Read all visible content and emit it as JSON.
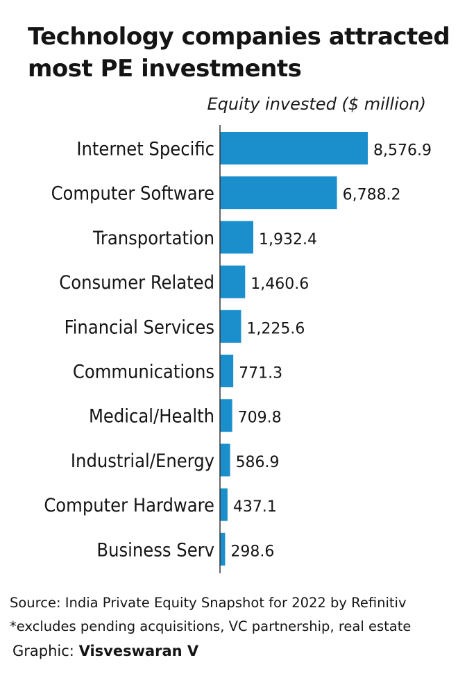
{
  "title": "Technology companies attracted most PE investments",
  "subtitle": "Equity invested ($ million)",
  "source": "Source: India Private Equity Snapshot for 2022 by Refinitiv",
  "footnote": "*excludes pending acquisitions, VC partnership, real estate",
  "credit": {
    "label": "Graphic:",
    "author": "Visveswaran V"
  },
  "colors": {
    "bar": "#1b8fcc",
    "axis": "#333333"
  },
  "chart_data": {
    "type": "bar",
    "orientation": "horizontal",
    "categories": [
      "Internet Specific",
      "Computer Software",
      "Transportation",
      "Consumer Related",
      "Financial Services",
      "Communications",
      "Medical/Health",
      "Industrial/Energy",
      "Computer Hardware",
      "Business Serv"
    ],
    "values": [
      8576.9,
      6788.2,
      1932.4,
      1460.6,
      1225.6,
      771.3,
      709.8,
      586.9,
      437.1,
      298.6
    ],
    "value_labels": [
      "8,576.9",
      "6,788.2",
      "1,932.4",
      "1,460.6",
      "1,225.6",
      "771.3",
      "709.8",
      "586.9",
      "437.1",
      "298.6"
    ],
    "xlim": [
      0,
      8576.9
    ],
    "grid": false,
    "legend": "none"
  }
}
